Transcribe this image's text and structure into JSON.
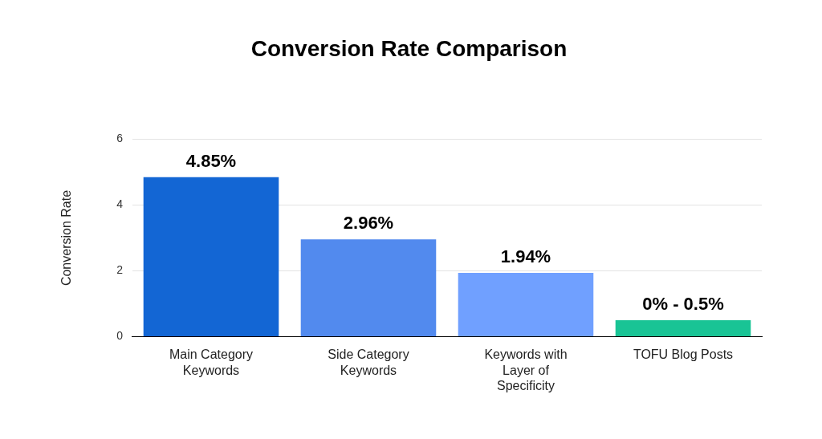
{
  "chart_data": {
    "type": "bar",
    "title": "Conversion Rate Comparison",
    "y_label": "Conversion Rate",
    "categories": [
      "Main Category Keywords",
      "Side Category Keywords",
      "Keywords with Layer of Specificity",
      "TOFU Blog Posts"
    ],
    "values": [
      4.85,
      2.96,
      1.94,
      0.5
    ],
    "value_labels": [
      "4.85%",
      "2.96%",
      "1.94%",
      "0% - 0.5%"
    ],
    "colors": [
      "#1366d4",
      "#528aee",
      "#70a0ff",
      "#19c495"
    ],
    "ylim": [
      0,
      6
    ],
    "yticks": [
      0,
      2,
      4,
      6
    ],
    "grid": true,
    "data_labels": true
  }
}
